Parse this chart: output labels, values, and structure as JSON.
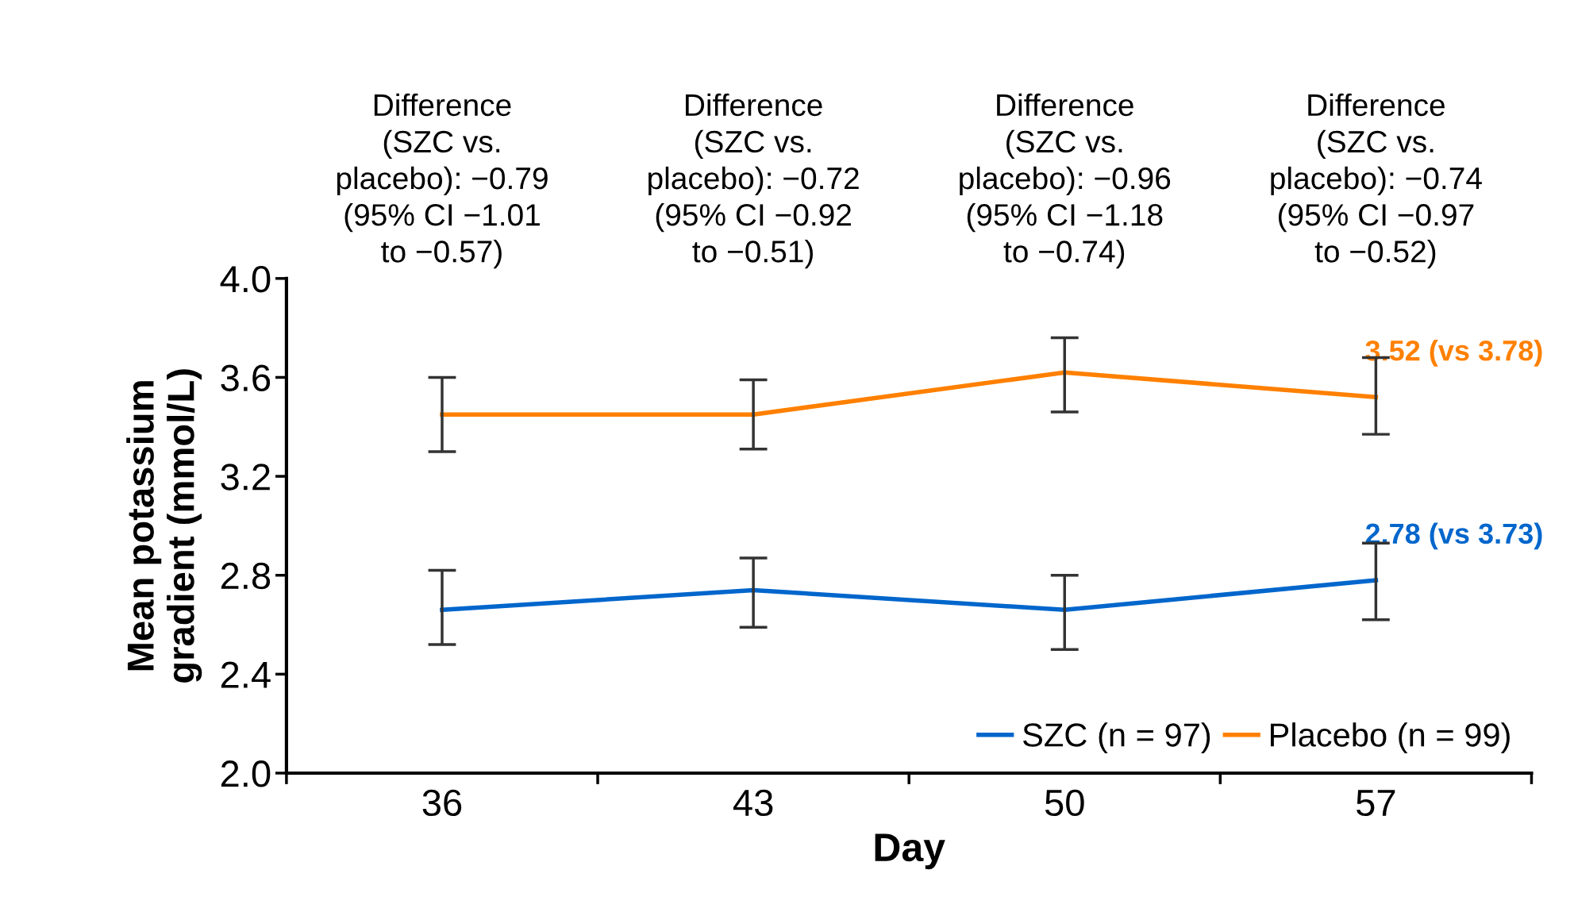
{
  "chart_data": {
    "type": "line",
    "xlabel": "Day",
    "ylabel": "Mean potassium\ngradient (mmol/L)",
    "categories": [
      "36",
      "43",
      "50",
      "57"
    ],
    "series": [
      {
        "name": "SZC (n = 97)",
        "color": "#0066cc",
        "values": [
          2.66,
          2.74,
          2.66,
          2.78
        ],
        "errors": [
          [
            2.52,
            2.82
          ],
          [
            2.59,
            2.87
          ],
          [
            2.5,
            2.8
          ],
          [
            2.62,
            2.93
          ]
        ],
        "value_labels": [
          null,
          null,
          null,
          "2.78 (vs 3.73)"
        ]
      },
      {
        "name": "Placebo (n = 99)",
        "color": "#ff8000",
        "values": [
          3.45,
          3.45,
          3.62,
          3.52
        ],
        "errors": [
          [
            3.3,
            3.6
          ],
          [
            3.31,
            3.59
          ],
          [
            3.46,
            3.76
          ],
          [
            3.37,
            3.68
          ]
        ],
        "value_labels": [
          null,
          null,
          null,
          "3.52 (vs 3.78)"
        ]
      }
    ],
    "ylim": [
      2.0,
      4.0
    ],
    "yticks": [
      {
        "value": 2.0,
        "label": "2.0"
      },
      {
        "value": 2.4,
        "label": "2.4"
      },
      {
        "value": 2.8,
        "label": "2.8"
      },
      {
        "value": 3.2,
        "label": "3.2"
      },
      {
        "value": 3.6,
        "label": "3.6"
      },
      {
        "value": 4.0,
        "label": "4.0"
      }
    ],
    "annotations": [
      "Difference\n(SZC vs.\nplacebo): −0.79\n(95% CI −1.01\nto −0.57)",
      "Difference\n(SZC vs.\nplacebo): −0.72\n(95% CI −0.92\nto −0.51)",
      "Difference\n(SZC vs.\nplacebo): −0.96\n(95% CI −1.18\nto −0.74)",
      "Difference\n(SZC vs.\nplacebo): −0.74\n(95% CI −0.97\nto −0.52)"
    ],
    "legend": "bottom right",
    "grid": false,
    "marker": "none",
    "line_style": "solid"
  }
}
